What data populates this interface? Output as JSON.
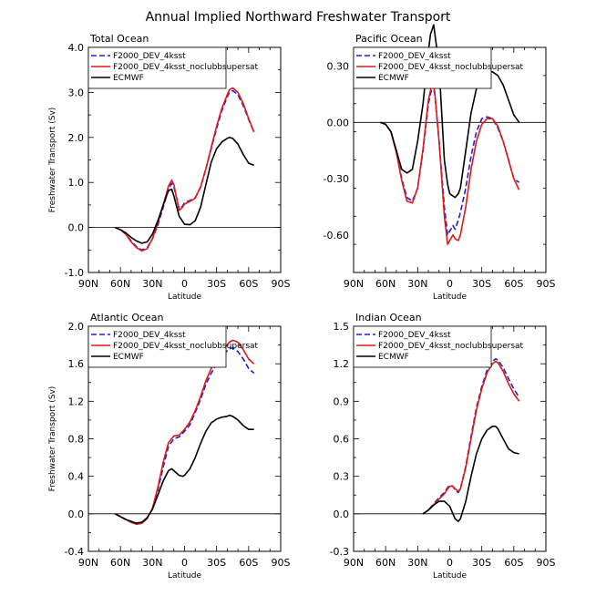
{
  "figure_title": "Annual Implied Northward Freshwater Transport",
  "colors": {
    "F2000_DEV_4ksst": "#1f1fd8",
    "F2000_DEV_4ksst_noclubbsupersat": "#e01818",
    "ECMWF": "#000000"
  },
  "chart_data": [
    {
      "type": "line",
      "title": "Total Ocean",
      "xlabel": "Latitude",
      "ylabel": "Freshwater Transport (Sv)",
      "xlim": [
        90,
        -90
      ],
      "ylim": [
        -1.0,
        4.0
      ],
      "x_ticks": [
        90,
        60,
        30,
        0,
        -30,
        -60,
        -90
      ],
      "x_tick_labels": [
        "90N",
        "60N",
        "30N",
        "0",
        "30S",
        "60S",
        "90S"
      ],
      "y_ticks": [
        -1.0,
        0.0,
        1.0,
        2.0,
        3.0,
        4.0
      ],
      "y_tick_labels": [
        "-1.0",
        "0.0",
        "1.0",
        "2.0",
        "3.0",
        "4.0"
      ],
      "legend": [
        "F2000_DEV_4ksst",
        "F2000_DEV_4ksst_noclubbsupersat",
        "ECMWF"
      ],
      "series": [
        {
          "name": "F2000_DEV_4ksst",
          "style": "dashed",
          "x": [
            65,
            60,
            55,
            50,
            45,
            40,
            35,
            30,
            25,
            20,
            15,
            12,
            10,
            5,
            2,
            0,
            -5,
            -10,
            -15,
            -20,
            -25,
            -30,
            -35,
            -40,
            -42,
            -45,
            -50,
            -55,
            -60,
            -65
          ],
          "y": [
            0,
            -0.05,
            -0.15,
            -0.3,
            -0.43,
            -0.5,
            -0.45,
            -0.25,
            0.05,
            0.45,
            0.85,
            0.98,
            0.9,
            0.42,
            0.47,
            0.55,
            0.6,
            0.66,
            0.9,
            1.3,
            1.75,
            2.2,
            2.6,
            2.9,
            3.0,
            3.04,
            2.95,
            2.7,
            2.4,
            2.12
          ]
        },
        {
          "name": "F2000_DEV_4ksst_noclubbsupersat",
          "style": "solid",
          "x": [
            65,
            60,
            55,
            50,
            45,
            40,
            35,
            30,
            25,
            20,
            15,
            12,
            10,
            5,
            2,
            0,
            -5,
            -10,
            -15,
            -20,
            -25,
            -30,
            -35,
            -40,
            -42,
            -45,
            -50,
            -55,
            -60,
            -65
          ],
          "y": [
            0,
            -0.05,
            -0.15,
            -0.32,
            -0.45,
            -0.52,
            -0.47,
            -0.25,
            0.1,
            0.5,
            0.92,
            1.05,
            0.95,
            0.38,
            0.45,
            0.52,
            0.58,
            0.65,
            0.9,
            1.3,
            1.78,
            2.25,
            2.65,
            2.95,
            3.06,
            3.1,
            3.0,
            2.75,
            2.42,
            2.12
          ]
        },
        {
          "name": "ECMWF",
          "style": "solid",
          "x": [
            65,
            60,
            55,
            50,
            45,
            40,
            35,
            30,
            25,
            20,
            15,
            12,
            10,
            5,
            0,
            -5,
            -10,
            -15,
            -20,
            -25,
            -30,
            -35,
            -40,
            -42,
            -45,
            -50,
            -55,
            -60,
            -65
          ],
          "y": [
            0,
            -0.05,
            -0.12,
            -0.22,
            -0.3,
            -0.35,
            -0.32,
            -0.15,
            0.15,
            0.5,
            0.82,
            0.85,
            0.7,
            0.25,
            0.07,
            0.06,
            0.15,
            0.45,
            0.95,
            1.45,
            1.75,
            1.9,
            1.98,
            2.0,
            1.98,
            1.85,
            1.62,
            1.43,
            1.38
          ]
        }
      ]
    },
    {
      "type": "line",
      "title": "Pacific Ocean",
      "xlabel": "Latitude",
      "ylabel": "",
      "xlim": [
        90,
        -90
      ],
      "ylim": [
        -0.8,
        0.4
      ],
      "x_ticks": [
        90,
        60,
        30,
        0,
        -30,
        -60,
        -90
      ],
      "x_tick_labels": [
        "90N",
        "60N",
        "30N",
        "0",
        "30S",
        "60S",
        "90S"
      ],
      "y_ticks": [
        -0.6,
        -0.3,
        0.0,
        0.3
      ],
      "y_tick_labels": [
        "-0.60",
        "-0.30",
        "0.00",
        "0.30"
      ],
      "legend": [
        "F2000_DEV_4ksst",
        "F2000_DEV_4ksst_noclubbsupersat",
        "ECMWF"
      ],
      "series": [
        {
          "name": "F2000_DEV_4ksst",
          "style": "dashed",
          "x": [
            65,
            60,
            55,
            50,
            45,
            40,
            35,
            30,
            25,
            20,
            16,
            14,
            10,
            5,
            2,
            0,
            -3,
            -5,
            -8,
            -10,
            -15,
            -20,
            -25,
            -30,
            -35,
            -40,
            -45,
            -50,
            -55,
            -60,
            -65
          ],
          "y": [
            0,
            -0.01,
            -0.05,
            -0.15,
            -0.3,
            -0.4,
            -0.42,
            -0.35,
            -0.15,
            0.1,
            0.2,
            0.15,
            -0.1,
            -0.45,
            -0.6,
            -0.58,
            -0.55,
            -0.57,
            -0.52,
            -0.48,
            -0.35,
            -0.18,
            -0.05,
            0.02,
            0.03,
            0.02,
            -0.03,
            -0.1,
            -0.2,
            -0.3,
            -0.32
          ]
        },
        {
          "name": "F2000_DEV_4ksst_noclubbsupersat",
          "style": "solid",
          "x": [
            65,
            60,
            55,
            50,
            45,
            40,
            35,
            30,
            25,
            20,
            16,
            14,
            10,
            5,
            2,
            0,
            -3,
            -5,
            -8,
            -10,
            -15,
            -20,
            -25,
            -30,
            -35,
            -40,
            -45,
            -50,
            -55,
            -60,
            -65
          ],
          "y": [
            0,
            -0.01,
            -0.05,
            -0.16,
            -0.31,
            -0.42,
            -0.43,
            -0.35,
            -0.14,
            0.12,
            0.22,
            0.16,
            -0.1,
            -0.5,
            -0.65,
            -0.63,
            -0.6,
            -0.62,
            -0.63,
            -0.6,
            -0.45,
            -0.25,
            -0.1,
            -0.01,
            0.02,
            0.02,
            -0.02,
            -0.1,
            -0.2,
            -0.3,
            -0.36
          ]
        },
        {
          "name": "ECMWF",
          "style": "solid",
          "x": [
            65,
            60,
            55,
            50,
            45,
            40,
            35,
            30,
            25,
            20,
            18,
            15,
            10,
            5,
            2,
            0,
            -5,
            -8,
            -10,
            -15,
            -20,
            -25,
            -30,
            -35,
            -40,
            -45,
            -50,
            -55,
            -60,
            -65
          ],
          "y": [
            0,
            -0.01,
            -0.05,
            -0.15,
            -0.25,
            -0.27,
            -0.25,
            -0.1,
            0.1,
            0.38,
            0.47,
            0.52,
            0.3,
            -0.2,
            -0.33,
            -0.38,
            -0.4,
            -0.38,
            -0.35,
            -0.15,
            0.05,
            0.18,
            0.24,
            0.27,
            0.27,
            0.25,
            0.2,
            0.12,
            0.04,
            0.0
          ]
        }
      ]
    },
    {
      "type": "line",
      "title": "Atlantic Ocean",
      "xlabel": "Latitude",
      "ylabel": "Freshwater Transport (Sv)",
      "xlim": [
        90,
        -90
      ],
      "ylim": [
        -0.4,
        2.0
      ],
      "x_ticks": [
        90,
        60,
        30,
        0,
        -30,
        -60,
        -90
      ],
      "x_tick_labels": [
        "90N",
        "60N",
        "30N",
        "0",
        "30S",
        "60S",
        "90S"
      ],
      "y_ticks": [
        -0.4,
        0.0,
        0.4,
        0.8,
        1.2,
        1.6,
        2.0
      ],
      "y_tick_labels": [
        "-0.4",
        "0.0",
        "0.4",
        "0.8",
        "1.2",
        "1.6",
        "2.0"
      ],
      "legend": [
        "F2000_DEV_4ksst",
        "F2000_DEV_4ksst_noclubbsupersat",
        "ECMWF"
      ],
      "series": [
        {
          "name": "F2000_DEV_4ksst",
          "style": "dashed",
          "x": [
            65,
            60,
            55,
            50,
            45,
            40,
            35,
            30,
            25,
            20,
            15,
            10,
            5,
            0,
            -5,
            -10,
            -15,
            -20,
            -25,
            -30,
            -35,
            -40,
            -42,
            -45,
            -50,
            -55,
            -60,
            -65
          ],
          "y": [
            0,
            -0.03,
            -0.06,
            -0.09,
            -0.11,
            -0.1,
            -0.05,
            0.05,
            0.25,
            0.5,
            0.72,
            0.8,
            0.82,
            0.88,
            0.95,
            1.08,
            1.22,
            1.38,
            1.5,
            1.6,
            1.68,
            1.74,
            1.76,
            1.77,
            1.73,
            1.65,
            1.55,
            1.5
          ]
        },
        {
          "name": "F2000_DEV_4ksst_noclubbsupersat",
          "style": "solid",
          "x": [
            65,
            60,
            55,
            50,
            45,
            40,
            35,
            30,
            25,
            20,
            15,
            10,
            5,
            0,
            -5,
            -10,
            -15,
            -20,
            -25,
            -30,
            -35,
            -40,
            -42,
            -45,
            -50,
            -55,
            -60,
            -65
          ],
          "y": [
            0,
            -0.03,
            -0.06,
            -0.09,
            -0.11,
            -0.1,
            -0.05,
            0.06,
            0.28,
            0.55,
            0.76,
            0.83,
            0.84,
            0.9,
            0.98,
            1.1,
            1.25,
            1.42,
            1.55,
            1.65,
            1.74,
            1.8,
            1.83,
            1.85,
            1.83,
            1.75,
            1.65,
            1.6
          ]
        },
        {
          "name": "ECMWF",
          "style": "solid",
          "x": [
            65,
            60,
            55,
            50,
            45,
            40,
            35,
            30,
            25,
            20,
            15,
            12,
            10,
            5,
            2,
            0,
            -5,
            -10,
            -15,
            -20,
            -25,
            -30,
            -35,
            -40,
            -42,
            -45,
            -50,
            -55,
            -60,
            -65
          ],
          "y": [
            0,
            -0.03,
            -0.06,
            -0.08,
            -0.1,
            -0.09,
            -0.04,
            0.05,
            0.2,
            0.35,
            0.46,
            0.48,
            0.46,
            0.41,
            0.4,
            0.41,
            0.48,
            0.6,
            0.75,
            0.88,
            0.97,
            1.01,
            1.03,
            1.04,
            1.05,
            1.04,
            1.0,
            0.94,
            0.9,
            0.9
          ]
        }
      ]
    },
    {
      "type": "line",
      "title": "Indian Ocean",
      "xlabel": "Latitude",
      "ylabel": "",
      "xlim": [
        90,
        -90
      ],
      "ylim": [
        -0.3,
        1.5
      ],
      "x_ticks": [
        90,
        60,
        30,
        0,
        -30,
        -60,
        -90
      ],
      "x_tick_labels": [
        "90N",
        "60N",
        "30N",
        "0",
        "30S",
        "60S",
        "90S"
      ],
      "y_ticks": [
        -0.3,
        0.0,
        0.3,
        0.6,
        0.9,
        1.2,
        1.5
      ],
      "y_tick_labels": [
        "-0.3",
        "0.0",
        "0.3",
        "0.6",
        "0.9",
        "1.2",
        "1.5"
      ],
      "legend": [
        "F2000_DEV_4ksst",
        "F2000_DEV_4ksst_noclubbsupersat",
        "ECMWF"
      ],
      "series": [
        {
          "name": "F2000_DEV_4ksst",
          "style": "dashed",
          "x": [
            25,
            20,
            15,
            10,
            5,
            2,
            0,
            -3,
            -5,
            -8,
            -10,
            -15,
            -20,
            -25,
            -30,
            -35,
            -40,
            -43,
            -45,
            -50,
            -55,
            -60,
            -65
          ],
          "y": [
            0,
            0.03,
            0.08,
            0.13,
            0.17,
            0.21,
            0.23,
            0.22,
            0.19,
            0.17,
            0.2,
            0.38,
            0.62,
            0.85,
            1.02,
            1.15,
            1.22,
            1.24,
            1.23,
            1.17,
            1.08,
            1.0,
            0.93
          ]
        },
        {
          "name": "F2000_DEV_4ksst_noclubbsupersat",
          "style": "solid",
          "x": [
            25,
            20,
            15,
            10,
            5,
            2,
            0,
            -3,
            -5,
            -8,
            -10,
            -15,
            -20,
            -25,
            -30,
            -35,
            -40,
            -43,
            -45,
            -50,
            -55,
            -60,
            -65
          ],
          "y": [
            0,
            0.03,
            0.07,
            0.12,
            0.16,
            0.2,
            0.22,
            0.22,
            0.2,
            0.18,
            0.2,
            0.37,
            0.6,
            0.83,
            1.0,
            1.13,
            1.2,
            1.22,
            1.21,
            1.14,
            1.04,
            0.96,
            0.9
          ]
        },
        {
          "name": "ECMWF",
          "style": "solid",
          "x": [
            25,
            20,
            15,
            10,
            5,
            0,
            -3,
            -5,
            -8,
            -10,
            -15,
            -20,
            -25,
            -30,
            -35,
            -40,
            -43,
            -45,
            -50,
            -55,
            -60,
            -65
          ],
          "y": [
            0,
            0.03,
            0.07,
            0.1,
            0.1,
            0.06,
            0.0,
            -0.04,
            -0.06,
            -0.04,
            0.1,
            0.3,
            0.48,
            0.6,
            0.67,
            0.7,
            0.7,
            0.68,
            0.6,
            0.52,
            0.49,
            0.48
          ]
        }
      ]
    }
  ]
}
